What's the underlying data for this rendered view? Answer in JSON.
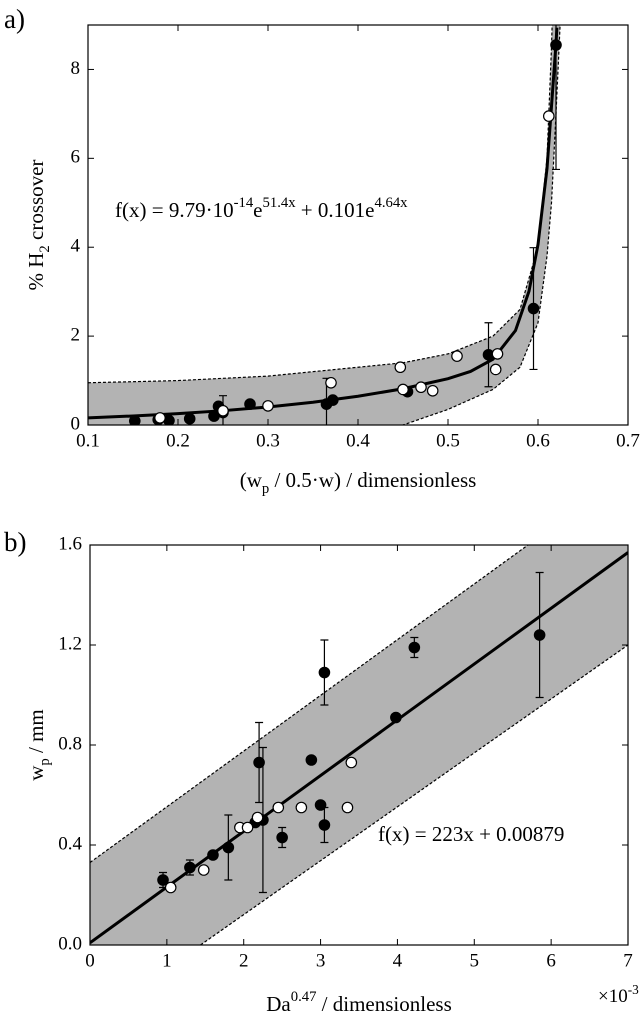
{
  "chart_data": [
    {
      "type": "scatter",
      "panel_label": "a)",
      "xlabel": [
        {
          "text": "(w"
        },
        {
          "text": "p",
          "sub": true
        },
        {
          "text": " / 0.5·w) / dimensionless"
        }
      ],
      "ylabel": [
        {
          "text": "% H"
        },
        {
          "text": "2",
          "sub": true
        },
        {
          "text": " crossover"
        }
      ],
      "annotation": [
        {
          "text": "f(x) = 9.79·10"
        },
        {
          "text": "-14",
          "sup": true
        },
        {
          "text": "e"
        },
        {
          "text": "51.4x",
          "sup": true
        },
        {
          "text": " + 0.101e"
        },
        {
          "text": "4.64x",
          "sup": true
        }
      ],
      "xlim": [
        0.1,
        0.7
      ],
      "xticks": [
        0.1,
        0.2,
        0.3,
        0.4,
        0.5,
        0.6,
        0.7
      ],
      "ylim": [
        0,
        9
      ],
      "yticks": [
        0,
        2,
        4,
        6,
        8
      ],
      "band": {
        "color": "#b3b3b3",
        "x": [
          0.1,
          0.2,
          0.3,
          0.4,
          0.45,
          0.5,
          0.55,
          0.58,
          0.6,
          0.61,
          0.615,
          0.62,
          0.625
        ],
        "upper": [
          0.95,
          1.0,
          1.1,
          1.3,
          1.4,
          1.6,
          2.0,
          2.6,
          4.0,
          6.0,
          8.5,
          12,
          17
        ],
        "lower": [
          -0.6,
          -0.45,
          -0.3,
          -0.12,
          0,
          0.35,
          0.8,
          1.3,
          2.3,
          3.8,
          5.0,
          7.0,
          9.2
        ]
      },
      "fit": {
        "color": "#000000",
        "x": [
          0.1,
          0.15,
          0.2,
          0.25,
          0.3,
          0.35,
          0.4,
          0.45,
          0.5,
          0.525,
          0.55,
          0.575,
          0.59,
          0.6,
          0.61,
          0.62,
          0.621
        ],
        "values": [
          0.161,
          0.203,
          0.255,
          0.322,
          0.406,
          0.512,
          0.646,
          0.816,
          1.042,
          1.205,
          1.481,
          2.126,
          3.01,
          4.06,
          5.77,
          8.58,
          8.94
        ]
      },
      "series": [
        {
          "marker": "filled",
          "color": "#000000",
          "x": [
            0.152,
            0.178,
            0.19,
            0.213,
            0.24,
            0.245,
            0.25,
            0.28,
            0.365,
            0.372,
            0.455,
            0.545,
            0.595,
            0.62
          ],
          "values": [
            0.09,
            0.12,
            0.1,
            0.14,
            0.2,
            0.42,
            0.28,
            0.47,
            0.47,
            0.56,
            0.75,
            1.58,
            2.62,
            8.55
          ],
          "errors": [
            null,
            null,
            null,
            null,
            null,
            null,
            0.38,
            null,
            0.58,
            null,
            null,
            0.72,
            1.37,
            2.8
          ]
        },
        {
          "marker": "open",
          "color": "#000000",
          "x": [
            0.18,
            0.25,
            0.3,
            0.37,
            0.447,
            0.45,
            0.47,
            0.483,
            0.51,
            0.553,
            0.555,
            0.612
          ],
          "values": [
            0.16,
            0.32,
            0.43,
            0.95,
            1.3,
            0.8,
            0.85,
            0.77,
            1.55,
            1.25,
            1.6,
            6.95
          ]
        }
      ]
    },
    {
      "type": "scatter",
      "panel_label": "b)",
      "xlabel": [
        {
          "text": "Da"
        },
        {
          "text": "0.47",
          "sup": true
        },
        {
          "text": " / dimensionless"
        }
      ],
      "ylabel": [
        {
          "text": "w"
        },
        {
          "text": "p",
          "sub": true
        },
        {
          "text": " / mm"
        }
      ],
      "annotation": [
        {
          "text": "f(x) = 223x + 0.00879"
        }
      ],
      "x_multiplier": [
        {
          "text": "×10"
        },
        {
          "text": "-3",
          "sup": true
        }
      ],
      "xlim": [
        0,
        7
      ],
      "xticks": [
        0,
        1,
        2,
        3,
        4,
        5,
        6,
        7
      ],
      "ylim": [
        0,
        1.6
      ],
      "yticks": [
        {
          "value": 0,
          "label": "0.0"
        },
        0.4,
        0.8,
        1.2,
        1.6
      ],
      "band": {
        "color": "#b3b3b3",
        "x": [
          0,
          7
        ],
        "upper": [
          0.33,
          1.89
        ],
        "lower": [
          -0.31,
          1.2
        ]
      },
      "fit": {
        "color": "#000000",
        "x": [
          0,
          7
        ],
        "values": [
          0.00879,
          1.57
        ]
      },
      "series": [
        {
          "marker": "filled",
          "color": "#000000",
          "x": [
            0.95,
            1.3,
            1.6,
            1.8,
            2.15,
            2.2,
            2.25,
            2.5,
            2.88,
            3.0,
            3.05,
            3.05,
            3.98,
            4.22,
            5.85
          ],
          "values": [
            0.26,
            0.31,
            0.36,
            0.39,
            0.49,
            0.73,
            0.5,
            0.43,
            0.74,
            0.56,
            0.48,
            1.09,
            0.91,
            1.19,
            1.24
          ],
          "errors": [
            0.03,
            0.03,
            null,
            0.13,
            null,
            0.16,
            0.29,
            0.04,
            null,
            null,
            0.07,
            0.13,
            null,
            0.04,
            0.25
          ]
        },
        {
          "marker": "open",
          "color": "#000000",
          "x": [
            1.05,
            1.48,
            1.95,
            2.05,
            2.18,
            2.45,
            2.75,
            3.35,
            3.4
          ],
          "values": [
            0.23,
            0.3,
            0.47,
            0.47,
            0.51,
            0.55,
            0.55,
            0.55,
            0.73
          ]
        }
      ]
    }
  ]
}
